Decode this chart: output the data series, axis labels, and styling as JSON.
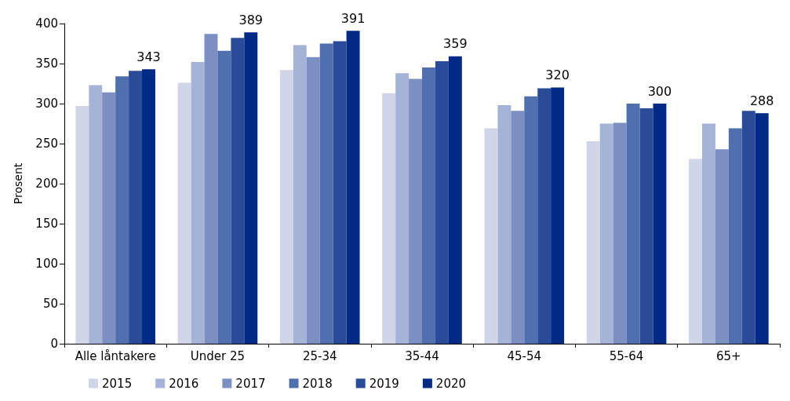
{
  "chart_data": {
    "type": "bar",
    "ylabel": "Prosent",
    "categories": [
      "Alle låntakere",
      "Under 25",
      "25-34",
      "35-44",
      "45-54",
      "55-64",
      "65+"
    ],
    "series": [
      {
        "name": "2015",
        "color": "#d0d6e8",
        "values": [
          297,
          326,
          342,
          313,
          269,
          253,
          231
        ]
      },
      {
        "name": "2016",
        "color": "#a5b4d6",
        "values": [
          323,
          352,
          373,
          338,
          298,
          275,
          275
        ]
      },
      {
        "name": "2017",
        "color": "#7b8fc2",
        "values": [
          314,
          387,
          358,
          331,
          291,
          276,
          243
        ]
      },
      {
        "name": "2018",
        "color": "#506fae",
        "values": [
          334,
          366,
          375,
          345,
          309,
          300,
          269
        ]
      },
      {
        "name": "2019",
        "color": "#2a4c98",
        "values": [
          341,
          382,
          378,
          353,
          319,
          294,
          291
        ]
      },
      {
        "name": "2020",
        "color": "#002a86",
        "values": [
          343,
          389,
          391,
          359,
          320,
          300,
          288
        ],
        "value_labels": [
          "343",
          "389",
          "391",
          "359",
          "320",
          "300",
          "288"
        ]
      }
    ],
    "ylim": [
      0,
      400
    ],
    "yticks": [
      0,
      50,
      100,
      150,
      200,
      250,
      300,
      350,
      400
    ],
    "grid": false,
    "legend": "bottom"
  }
}
